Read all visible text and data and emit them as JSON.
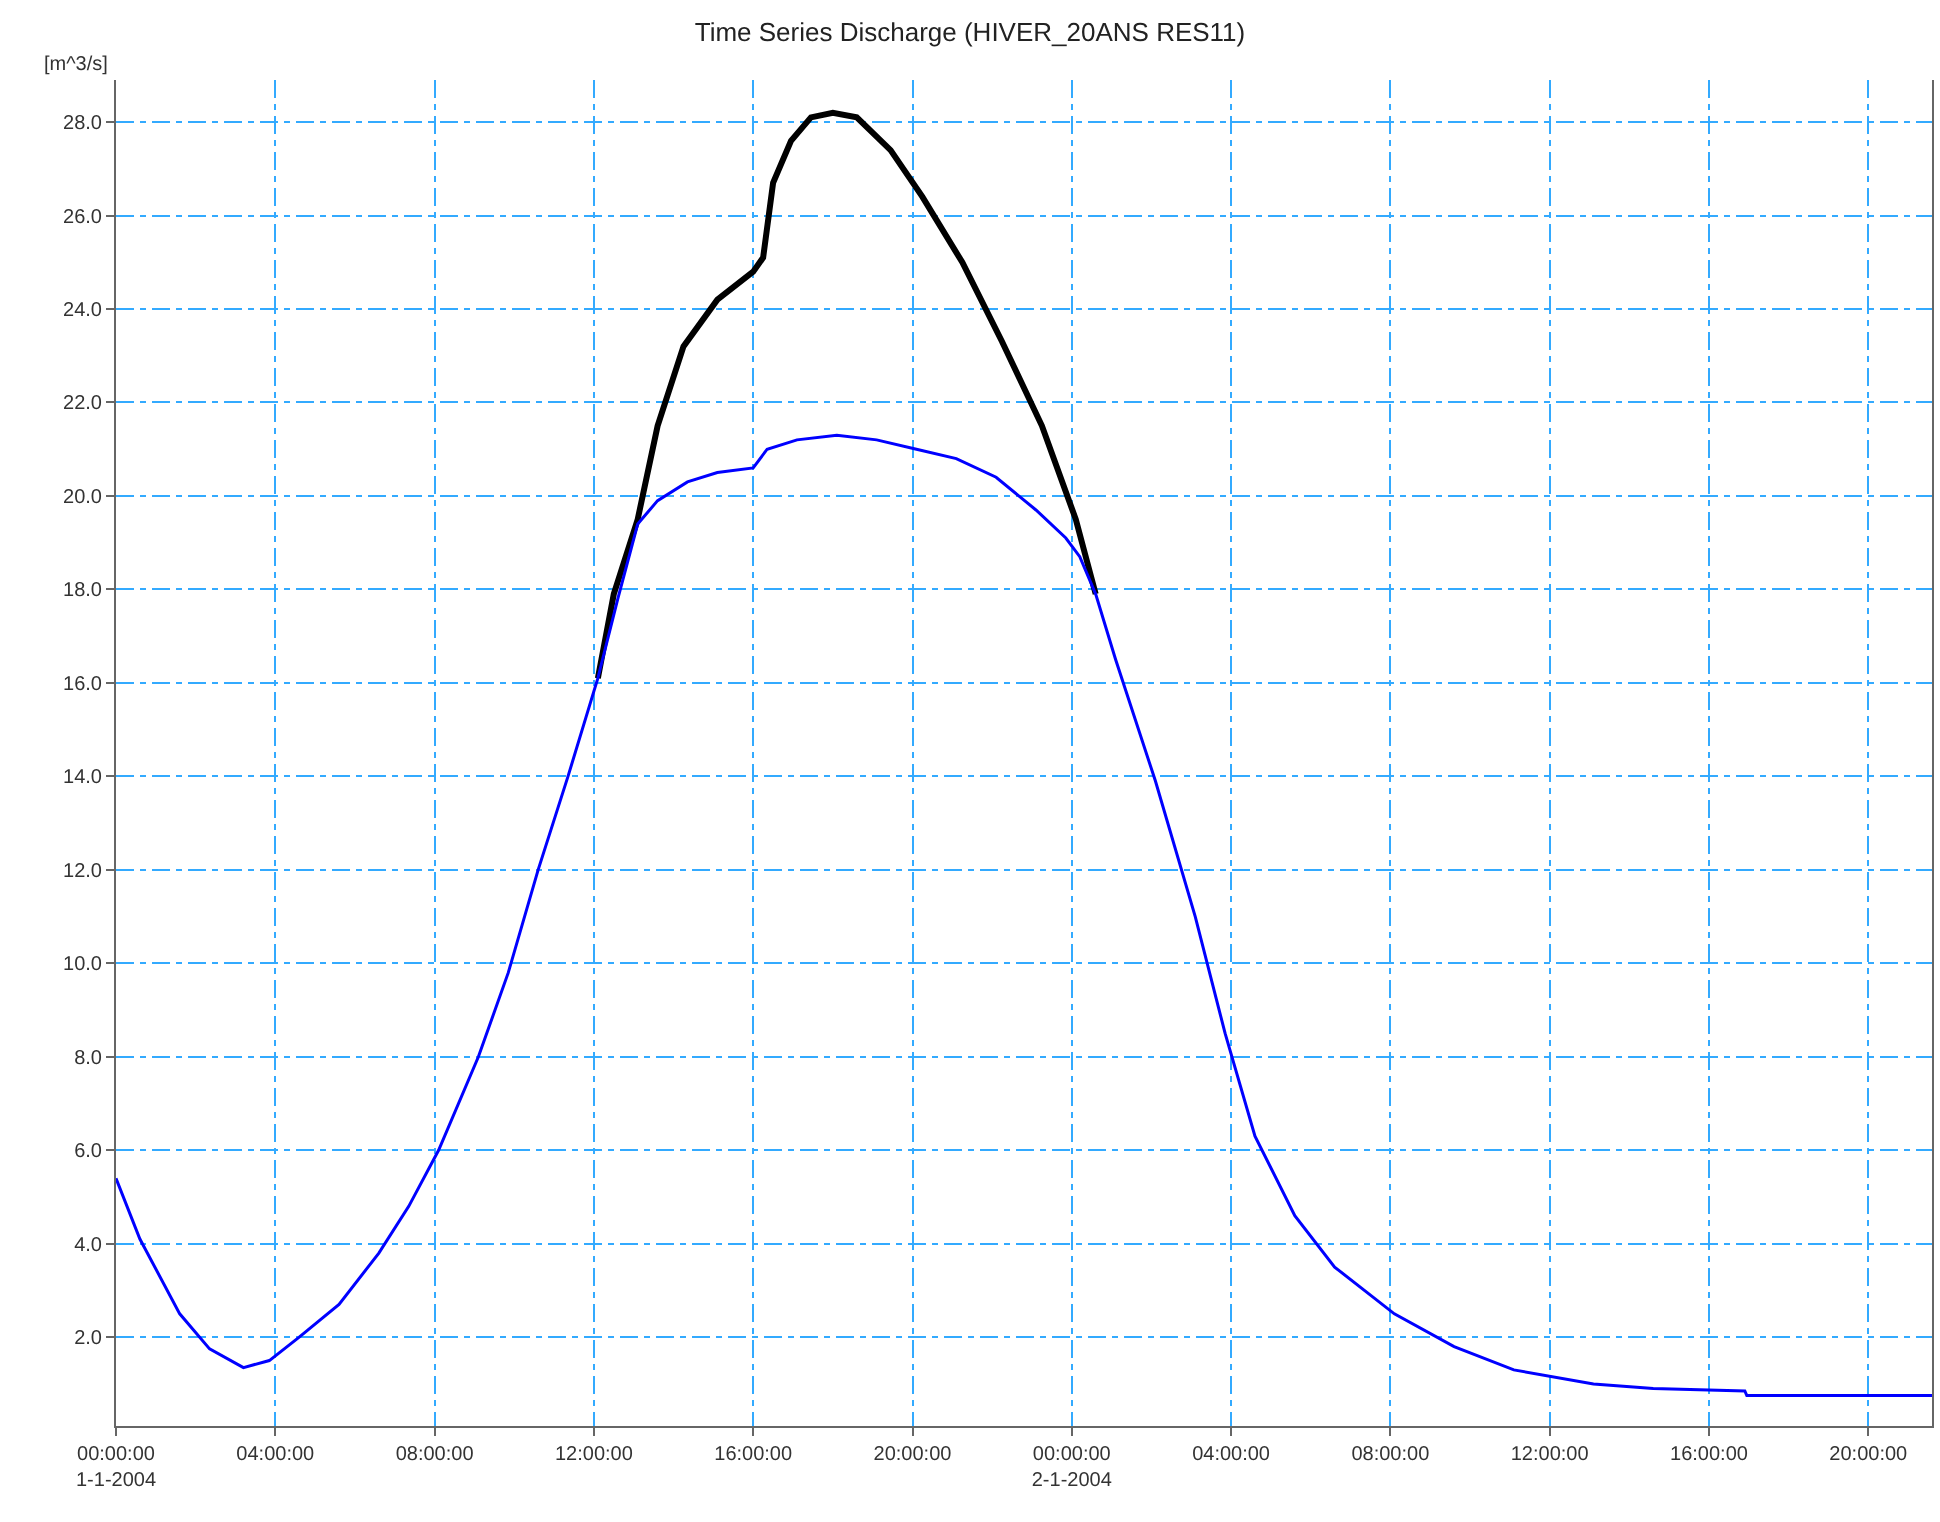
{
  "chart_data": {
    "type": "line",
    "title": "Time Series Discharge (HIVER_20ANS RES11)",
    "ylabel": "[m^3/s]",
    "x": [
      "2004-01-01T00:00",
      "2004-01-01T00:36",
      "2004-01-01T01:36",
      "2004-01-01T02:21",
      "2004-01-01T03:12",
      "2004-01-01T03:51",
      "2004-01-01T04:36",
      "2004-01-01T05:36",
      "2004-01-01T06:36",
      "2004-01-01T07:21",
      "2004-01-01T08:06",
      "2004-01-01T09:06",
      "2004-01-01T09:51",
      "2004-01-01T10:36",
      "2004-01-01T11:21",
      "2004-01-01T12:06",
      "2004-01-01T12:36",
      "2004-01-01T13:06",
      "2004-01-01T13:36",
      "2004-01-01T14:21",
      "2004-01-01T15:06",
      "2004-01-01T16:00",
      "2004-01-01T16:21",
      "2004-01-01T17:06",
      "2004-01-01T18:06",
      "2004-01-01T19:06",
      "2004-01-01T20:06",
      "2004-01-01T21:06",
      "2004-01-01T22:06",
      "2004-01-01T23:06",
      "2004-01-01T23:51",
      "2004-01-02T00:12",
      "2004-01-02T00:36",
      "2004-01-02T01:06",
      "2004-01-02T02:06",
      "2004-01-02T03:06",
      "2004-01-02T03:51",
      "2004-01-02T04:36",
      "2004-01-02T05:36",
      "2004-01-02T06:36",
      "2004-01-02T08:06",
      "2004-01-02T09:36",
      "2004-01-02T11:06",
      "2004-01-02T13:06",
      "2004-01-02T14:36",
      "2004-01-02T16:54",
      "2004-01-02T16:57",
      "2004-01-02T21:36"
    ],
    "series": [
      {
        "color": "#000000",
        "x": [
          "2004-01-01T12:06",
          "2004-01-01T12:30",
          "2004-01-01T13:06",
          "2004-01-01T13:36",
          "2004-01-01T14:15",
          "2004-01-01T15:06",
          "2004-01-01T16:00",
          "2004-01-01T16:15",
          "2004-01-01T16:30",
          "2004-01-01T16:57",
          "2004-01-01T17:27",
          "2004-01-01T18:00",
          "2004-01-01T18:36",
          "2004-01-01T19:27",
          "2004-01-01T20:15",
          "2004-01-01T21:15",
          "2004-01-01T22:15",
          "2004-01-01T23:15",
          "2004-01-02T00:06",
          "2004-01-02T00:36"
        ],
        "values": [
          16.1,
          17.9,
          19.5,
          21.5,
          23.2,
          24.2,
          24.8,
          25.1,
          26.7,
          27.6,
          28.1,
          28.2,
          28.1,
          27.4,
          26.4,
          25.0,
          23.3,
          21.5,
          19.5,
          17.9
        ]
      },
      {
        "color": "#0000ff",
        "values": [
          5.4,
          4.1,
          2.5,
          1.75,
          1.35,
          1.5,
          2.0,
          2.7,
          3.8,
          4.8,
          6.0,
          8.0,
          9.8,
          12.0,
          14.0,
          16.1,
          17.8,
          19.4,
          19.9,
          20.3,
          20.5,
          20.6,
          21.0,
          21.2,
          21.3,
          21.2,
          21.0,
          20.8,
          20.4,
          19.7,
          19.1,
          18.7,
          17.9,
          16.5,
          13.9,
          11.0,
          8.5,
          6.3,
          4.6,
          3.5,
          2.5,
          1.8,
          1.3,
          1.0,
          0.9,
          0.85,
          0.75,
          0.75
        ]
      }
    ],
    "xlim": [
      "2004-01-01T00:00",
      "2004-01-02T21:36"
    ],
    "xticks": [
      {
        "value": "2004-01-01T00:00",
        "label": "00:00:00\n1-1-2004"
      },
      {
        "value": "2004-01-01T04:00",
        "label": "04:00:00"
      },
      {
        "value": "2004-01-01T08:00",
        "label": "08:00:00"
      },
      {
        "value": "2004-01-01T12:00",
        "label": "12:00:00"
      },
      {
        "value": "2004-01-01T16:00",
        "label": "16:00:00"
      },
      {
        "value": "2004-01-01T20:00",
        "label": "20:00:00"
      },
      {
        "value": "2004-01-02T00:00",
        "label": "00:00:00\n2-1-2004"
      },
      {
        "value": "2004-01-02T04:00",
        "label": "04:00:00"
      },
      {
        "value": "2004-01-02T08:00",
        "label": "08:00:00"
      },
      {
        "value": "2004-01-02T12:00",
        "label": "12:00:00"
      },
      {
        "value": "2004-01-02T16:00",
        "label": "16:00:00"
      },
      {
        "value": "2004-01-02T20:00",
        "label": "20:00:00"
      }
    ],
    "ylim": [
      0.1,
      28.9
    ],
    "yticks": [
      {
        "value": 2,
        "label": "2.0"
      },
      {
        "value": 4,
        "label": "4.0"
      },
      {
        "value": 6,
        "label": "6.0"
      },
      {
        "value": 8,
        "label": "8.0"
      },
      {
        "value": 10,
        "label": "10.0"
      },
      {
        "value": 12,
        "label": "12.0"
      },
      {
        "value": 14,
        "label": "14.0"
      },
      {
        "value": 16,
        "label": "16.0"
      },
      {
        "value": 18,
        "label": "18.0"
      },
      {
        "value": 20,
        "label": "20.0"
      },
      {
        "value": 22,
        "label": "22.0"
      },
      {
        "value": 24,
        "label": "24.0"
      },
      {
        "value": 26,
        "label": "26.0"
      },
      {
        "value": 28,
        "label": "28.0"
      }
    ],
    "grid": true
  }
}
